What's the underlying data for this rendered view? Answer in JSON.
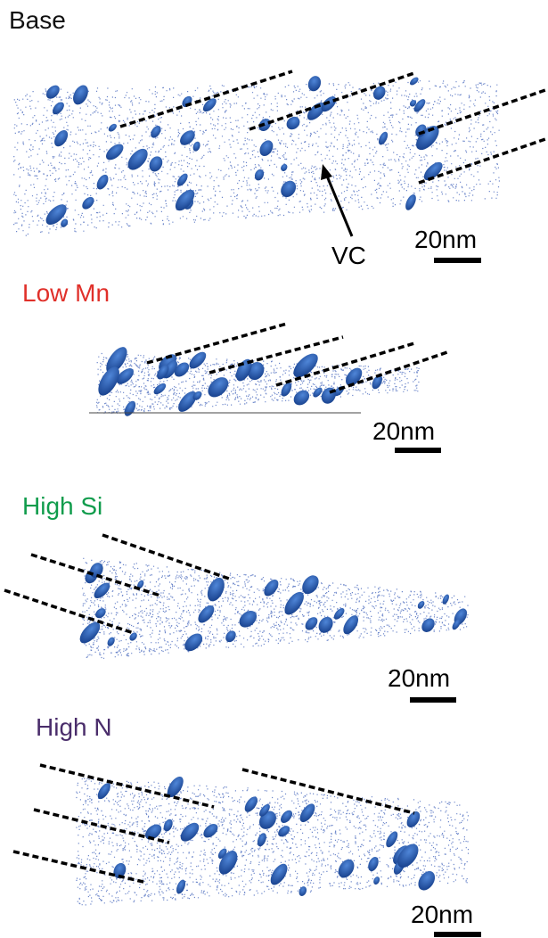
{
  "panels": [
    {
      "label": "Base",
      "scale_bar": "20nm",
      "annotation": "VC"
    },
    {
      "label": "Low Mn",
      "scale_bar": "20nm"
    },
    {
      "label": "High Si",
      "scale_bar": "20nm"
    },
    {
      "label": "High N",
      "scale_bar": "20nm"
    }
  ]
}
